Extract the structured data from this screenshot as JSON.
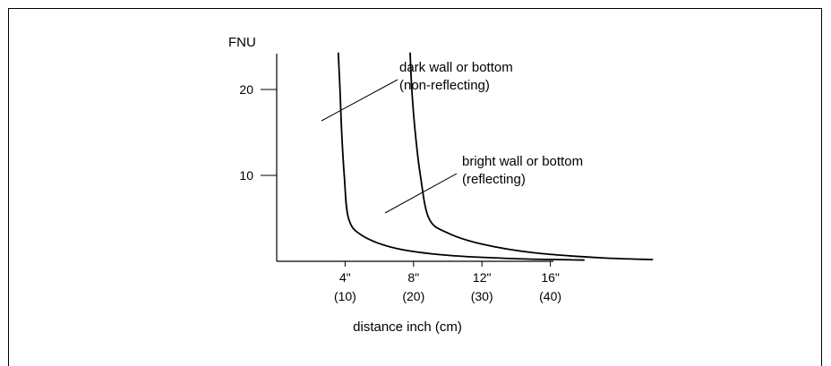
{
  "chart_data": {
    "type": "line",
    "title": "",
    "ylabel": "FNU",
    "xlabel": "distance inch (cm)",
    "ylim": [
      0,
      24
    ],
    "xlim": [
      0,
      22
    ],
    "y_ticks": [
      {
        "value": 10,
        "label": "10"
      },
      {
        "value": 20,
        "label": "20"
      }
    ],
    "x_ticks": [
      {
        "value": 4,
        "label_inch": "4\"",
        "label_cm": "(10)"
      },
      {
        "value": 8,
        "label_inch": "8\"",
        "label_cm": "(20)"
      },
      {
        "value": 12,
        "label_inch": "12\"",
        "label_cm": "(30)"
      },
      {
        "value": 16,
        "label_inch": "16\"",
        "label_cm": "(40)"
      }
    ],
    "grid": false,
    "series": [
      {
        "name": "dark wall or bottom (non-reflecting)",
        "x": [
          3.6,
          3.7,
          3.8,
          3.95,
          4.2,
          5.0,
          7.0,
          10.0,
          14.0,
          18.0
        ],
        "y": [
          24.3,
          20.0,
          15.0,
          10.0,
          5.0,
          3.0,
          1.5,
          0.7,
          0.3,
          0.15
        ]
      },
      {
        "name": "bright wall or bottom (reflecting)",
        "x": [
          7.8,
          7.9,
          8.1,
          8.4,
          8.9,
          10.0,
          12.0,
          15.0,
          19.0,
          22.0
        ],
        "y": [
          24.3,
          20.0,
          15.0,
          10.0,
          5.0,
          3.3,
          2.0,
          1.0,
          0.4,
          0.2
        ]
      }
    ],
    "annotations": [
      {
        "series": 0,
        "lines": [
          "dark wall or bottom",
          "(non-reflecting)"
        ],
        "at_x": 3.7,
        "at_y": 16.5
      },
      {
        "series": 1,
        "lines": [
          "bright wall or bottom",
          "(reflecting)"
        ],
        "at_x": 8.65,
        "at_y": 5.5
      }
    ]
  }
}
